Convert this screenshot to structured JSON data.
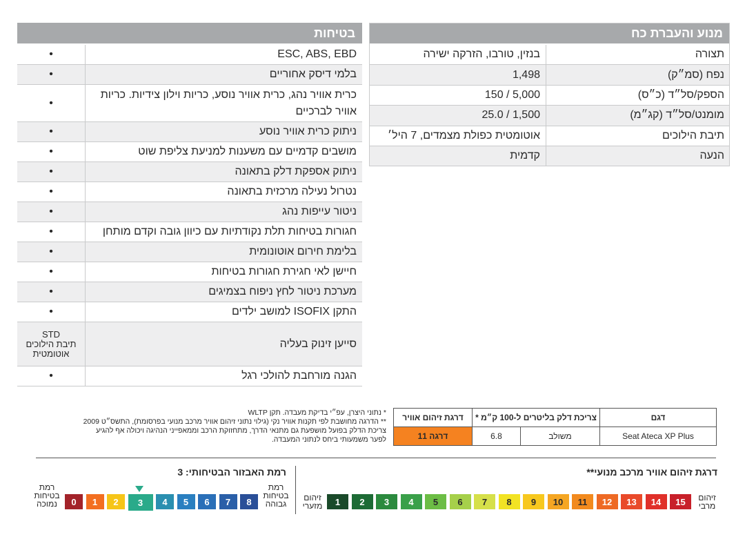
{
  "engine": {
    "title": "מנוע והעברת כח",
    "rows": [
      {
        "label": "תצורה",
        "value": "בנזין, טורבו, הזרקה ישירה"
      },
      {
        "label": "נפח (סמ״ק)",
        "value": "1,498"
      },
      {
        "label": "הספק/סל״ד (כ״ס)",
        "value": "5,000 / 150"
      },
      {
        "label": "מומנט/סל״ד (קג״מ)",
        "value": "1,500 / 25.0"
      },
      {
        "label": "תיבת הילוכים",
        "value": "אוטומטית כפולת מצמדים, 7 היל׳"
      },
      {
        "label": "הנעה",
        "value": "קדמית"
      }
    ]
  },
  "safety": {
    "title": "בטיחות",
    "rows": [
      {
        "feature": "ESC, ABS, EBD",
        "mark": "•"
      },
      {
        "feature": "בלמי דיסק אחוריים",
        "mark": "•"
      },
      {
        "feature": "כרית אוויר נהג, כרית אוויר נוסע, כריות וילון צידיות. כריות אוויר לברכיים",
        "mark": "•"
      },
      {
        "feature": "ניתוק כרית אוויר נוסע",
        "mark": "•"
      },
      {
        "feature": "מושבים קדמיים עם משענות למניעת צליפת שוט",
        "mark": "•"
      },
      {
        "feature": "ניתוק אספקת דלק בתאונה",
        "mark": "•"
      },
      {
        "feature": "נטרול נעילה מרכזית בתאונה",
        "mark": "•"
      },
      {
        "feature": "ניטור עייפות נהג",
        "mark": "•"
      },
      {
        "feature": "חגורות בטיחות תלת נקודתיות עם כיוון גובה וקדם מותחן",
        "mark": "•"
      },
      {
        "feature": "בלימת חירום אוטונומית",
        "mark": "•"
      },
      {
        "feature": "חיישן לאי חגירת חגורות בטיחות",
        "mark": "•"
      },
      {
        "feature": "מערכת ניטור לחץ ניפוח בצמיגים",
        "mark": "•"
      },
      {
        "feature": "התקן ISOFIX למושב ילדים",
        "mark": "•"
      },
      {
        "feature": "סייען זינוק בעליה",
        "mark": "STD\nתיבת הילוכים\nאוטומטית"
      },
      {
        "feature": "הגנה מורחבת להולכי רגל",
        "mark": "•"
      }
    ]
  },
  "consumption": {
    "headers": {
      "model": "דגם",
      "fuel": "צריכת דלק בליטרים ל-100 ק״מ *",
      "pollution": "דרגת זיהום אוויר"
    },
    "model": "Seat Ateca XP Plus",
    "mode": "משולב",
    "value": "6.8",
    "grade": "דרגה 11",
    "grade_color": "#f58220"
  },
  "notes": [
    "*  נתוני היצרן, עפ״י בדיקת מעבדה. תקן WLTP",
    "** הדרגה מחושבת לפי תקנות אוויר נקי (גילוי נתוני זיהום אוויר מרכב מנועי בפרסומת), התשס״ט 2009",
    "צריכת הדלק בפועל מושפעת גם מתנאי הדרך, מתחזוקת הרכב וממאפייני הנהיגה ויכולה אף להגיע",
    "לפער משמעותי ביחס לנתוני המעבדה."
  ],
  "pollution_scale": {
    "title": "דרגת זיהום אוויר מרכב מנועי**",
    "label_max": "זיהום מרבי",
    "label_min": "זיהום מזערי",
    "levels": [
      "1",
      "2",
      "3",
      "4",
      "5",
      "6",
      "7",
      "8",
      "9",
      "10",
      "11",
      "12",
      "13",
      "14",
      "15"
    ],
    "colors": [
      "#1a4a2a",
      "#1d6b35",
      "#2b8a3e",
      "#3aa04a",
      "#6cbd45",
      "#a6d04a",
      "#d6e04a",
      "#f2e324",
      "#f7c81e",
      "#f5a623",
      "#f28a1e",
      "#ee6a24",
      "#e94a2a",
      "#e0302a",
      "#c8202a"
    ],
    "text_colors": [
      "#ffffff",
      "#ffffff",
      "#ffffff",
      "#ffffff",
      "#2a2a2a",
      "#2a2a2a",
      "#2a2a2a",
      "#2a2a2a",
      "#2a2a2a",
      "#2a2a2a",
      "#2a2a2a",
      "#ffffff",
      "#ffffff",
      "#ffffff",
      "#ffffff"
    ]
  },
  "safety_scale": {
    "title": "רמת האבזור הבטיחותי: 3",
    "label_high": "רמת בטיחות גבוהה",
    "label_low": "רמת בטיחות נמוכה",
    "levels": [
      "0",
      "1",
      "2",
      "3",
      "4",
      "5",
      "6",
      "7",
      "8"
    ],
    "colors": [
      "#a3232a",
      "#f36f21",
      "#f6c518",
      "#2aaa8a",
      "#2a8fb0",
      "#2a7fc0",
      "#2a6fb8",
      "#2a5fa8",
      "#2a4f98"
    ],
    "current": "3",
    "marker_color": "#2aaa8a"
  }
}
